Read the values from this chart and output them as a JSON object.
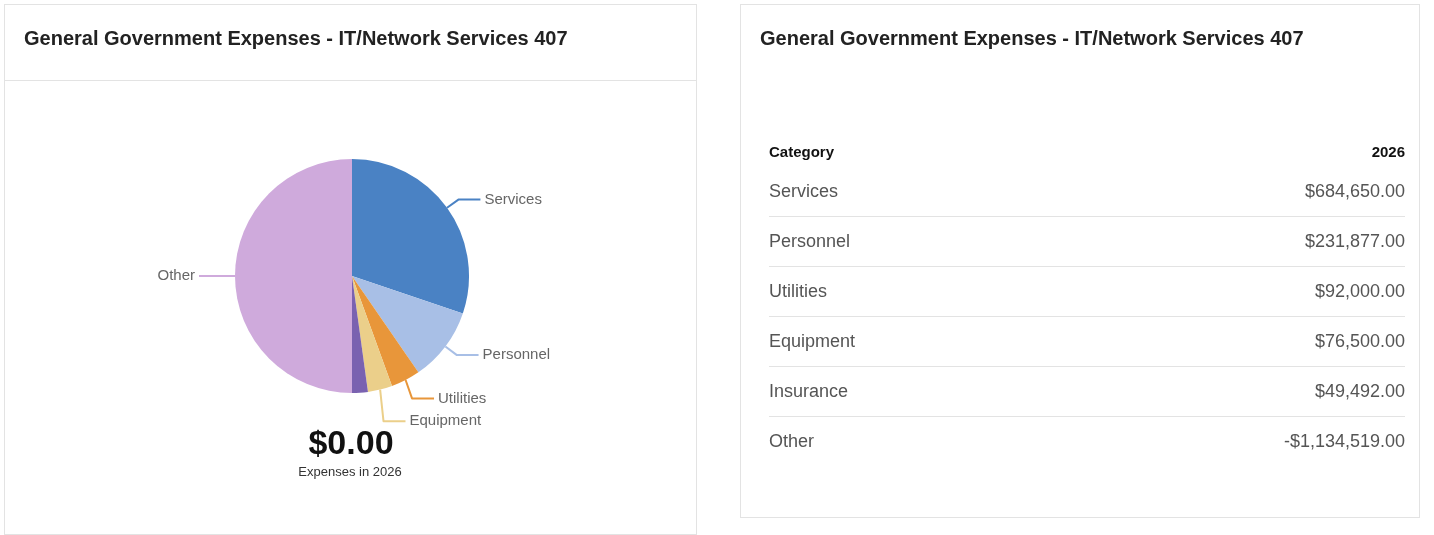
{
  "chart_data": [
    {
      "type": "pie",
      "title": "General Government Expenses - IT/Network Services 407",
      "categories": [
        "Services",
        "Personnel",
        "Utilities",
        "Equipment",
        null,
        "Other"
      ],
      "values": [
        30.18,
        10.22,
        4.05,
        3.37,
        2.18,
        50.0
      ],
      "colors": [
        "#4a82c4",
        "#a8bfe6",
        "#e8963a",
        "#ebcf8a",
        "#7a62b0",
        "#cfaadc"
      ],
      "annotations": [
        "$0.00",
        "Expenses in 2026"
      ]
    },
    {
      "type": "other",
      "title": "General Government Expenses - IT/Network Services 407",
      "xlabel": "Category",
      "ylabel": "2026",
      "categories": [
        "Services",
        "Personnel",
        "Utilities",
        "Equipment",
        "Insurance",
        "Other"
      ],
      "value_labels": [
        "$684,650.00",
        "$231,877.00",
        "$92,000.00",
        "$76,500.00",
        "$49,492.00",
        "-$1,134,519.00"
      ]
    }
  ]
}
